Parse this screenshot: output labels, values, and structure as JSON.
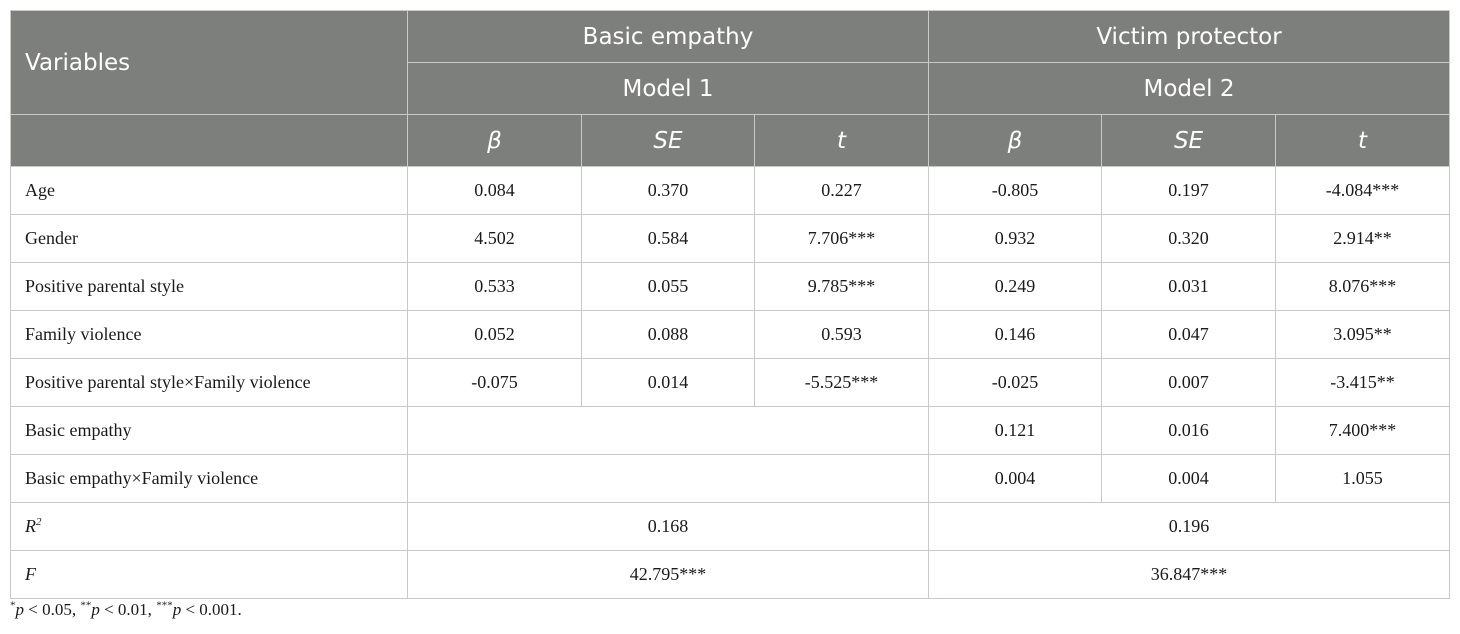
{
  "header": {
    "variables": "Variables",
    "outcome1": "Basic empathy",
    "outcome2": "Victim protector",
    "model1": "Model 1",
    "model2": "Model 2",
    "beta": "β",
    "se": "SE",
    "t": "t"
  },
  "rows": [
    {
      "label": "Age",
      "m1": [
        "0.084",
        "0.370",
        "0.227"
      ],
      "m2": [
        "-0.805",
        "0.197",
        "-4.084***"
      ]
    },
    {
      "label": "Gender",
      "m1": [
        "4.502",
        "0.584",
        "7.706***"
      ],
      "m2": [
        "0.932",
        "0.320",
        "2.914**"
      ]
    },
    {
      "label": "Positive parental style",
      "m1": [
        "0.533",
        "0.055",
        "9.785***"
      ],
      "m2": [
        "0.249",
        "0.031",
        "8.076***"
      ]
    },
    {
      "label": "Family violence",
      "m1": [
        "0.052",
        "0.088",
        "0.593"
      ],
      "m2": [
        "0.146",
        "0.047",
        "3.095**"
      ]
    },
    {
      "label": "Positive parental style×Family violence",
      "m1": [
        "-0.075",
        "0.014",
        "-5.525***"
      ],
      "m2": [
        "-0.025",
        "0.007",
        "-3.415**"
      ]
    },
    {
      "label": "Basic empathy",
      "m2": [
        "0.121",
        "0.016",
        "7.400***"
      ]
    },
    {
      "label": "Basic empathy×Family violence",
      "m2": [
        "0.004",
        "0.004",
        "1.055"
      ]
    }
  ],
  "r2": {
    "label": "R",
    "sup": "2",
    "m1": "0.168",
    "m2": "0.196"
  },
  "f": {
    "label": "F",
    "m1": "42.795***",
    "m2": "36.847***"
  },
  "footnote": {
    "s1": "*",
    "p1": "p",
    "t1": " < 0.05, ",
    "s2": "**",
    "p2": "p",
    "t2": " < 0.01, ",
    "s3": "***",
    "p3": "p",
    "t3": " < 0.001."
  }
}
